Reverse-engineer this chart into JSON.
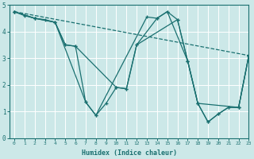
{
  "xlabel": "Humidex (Indice chaleur)",
  "bg_color": "#cce8e8",
  "line_color": "#1a7070",
  "grid_color": "#ffffff",
  "xlim": [
    -0.5,
    23
  ],
  "ylim": [
    0,
    5
  ],
  "xticks": [
    0,
    1,
    2,
    3,
    4,
    5,
    6,
    7,
    8,
    9,
    10,
    11,
    12,
    13,
    14,
    15,
    16,
    17,
    18,
    19,
    20,
    21,
    22,
    23
  ],
  "yticks": [
    0,
    1,
    2,
    3,
    4,
    5
  ],
  "line1_x": [
    0,
    23
  ],
  "line1_y": [
    4.75,
    3.1
  ],
  "line1_style": "--",
  "line2_x": [
    0,
    1,
    2,
    3,
    4,
    5,
    6,
    7,
    8,
    9,
    10,
    11,
    12,
    14,
    15,
    16,
    17,
    18,
    19,
    20,
    21,
    22,
    23
  ],
  "line2_y": [
    4.75,
    4.6,
    4.5,
    4.45,
    4.35,
    3.5,
    3.45,
    1.35,
    0.85,
    1.3,
    1.9,
    1.85,
    3.5,
    4.5,
    4.75,
    4.45,
    2.9,
    1.3,
    0.6,
    0.9,
    1.15,
    1.15,
    3.1
  ],
  "line2_style": "-",
  "line3_x": [
    0,
    2,
    4,
    5,
    6,
    10,
    11,
    12,
    16,
    17,
    18,
    19,
    20,
    21,
    22,
    23
  ],
  "line3_y": [
    4.75,
    4.5,
    4.35,
    3.5,
    3.45,
    1.9,
    1.85,
    3.5,
    4.45,
    2.9,
    1.3,
    0.6,
    0.9,
    1.15,
    1.15,
    3.1
  ],
  "line3_style": "-",
  "line4_x": [
    0,
    2,
    4,
    7,
    8,
    13,
    14,
    15,
    17,
    18,
    22,
    23
  ],
  "line4_y": [
    4.75,
    4.5,
    4.35,
    1.35,
    0.85,
    4.55,
    4.5,
    4.75,
    2.9,
    1.3,
    1.15,
    3.1
  ],
  "line4_style": "-"
}
